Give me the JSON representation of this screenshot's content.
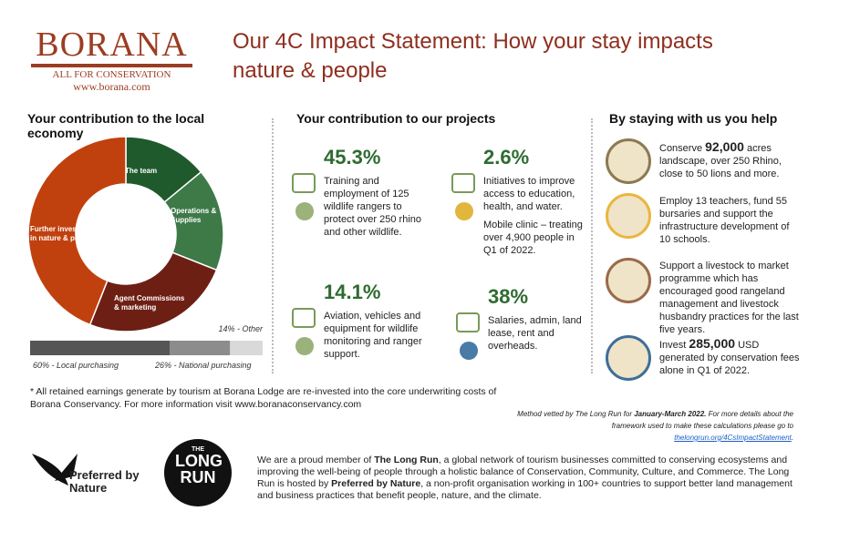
{
  "header": {
    "logo_title": "BORANA",
    "logo_tagline": "ALL FOR CONSERVATION",
    "logo_url": "www.borana.com",
    "title": "Our 4C Impact Statement: How your stay impacts nature & people"
  },
  "local": {
    "heading": "Your contribution to the local economy",
    "donut": {
      "segments": [
        {
          "label": "The team",
          "value": 14,
          "color": "#1f5a2c"
        },
        {
          "label": "Operations & Supplies",
          "value": 17,
          "color": "#3d7a48"
        },
        {
          "label": "Agent Commissions & marketing",
          "value": 25,
          "color": "#6e1f14"
        },
        {
          "label": "Further investment in nature & people",
          "value": 44,
          "color": "#c0410e"
        }
      ]
    },
    "bar": {
      "segments": [
        {
          "value": 60,
          "label": "60% - Local purchasing",
          "color": "#555555"
        },
        {
          "value": 26,
          "label": "26% - National purchasing",
          "color": "#8c8c8c"
        },
        {
          "value": 14,
          "label": "14% - Other",
          "color": "#d9d9d9"
        }
      ]
    }
  },
  "projects": {
    "heading": "Your contribution to our projects",
    "items": [
      {
        "percent": "45.3%",
        "text": "Training and employment of 125 wildlife rangers to protect over 250 rhino and other wildlife."
      },
      {
        "percent": "2.6%",
        "text": "Initiatives to improve access to education, health, and water.",
        "extra": "Mobile clinic – treating over 4,900 people in Q1 of 2022."
      },
      {
        "percent": "14.1%",
        "text": "Aviation, vehicles and equipment for wildlife monitoring and ranger support."
      },
      {
        "percent": "38%",
        "text": "Salaries, admin, land lease, rent and overheads."
      }
    ]
  },
  "help": {
    "heading": "By staying with us you help",
    "items": [
      {
        "before": "Conserve ",
        "strong": "92,000",
        "after": " acres landscape, over 250 Rhino, close to 50 lions and more."
      },
      {
        "before": "Employ 13 teachers, fund 55 bursaries and support the infrastructure development of 10 schools."
      },
      {
        "before": "Support a livestock to market programme which has encouraged good rangeland management and livestock husbandry practices for the last five years."
      },
      {
        "before": "Invest ",
        "strong": "285,000",
        "after": " USD generated by conservation fees alone in Q1 of 2022."
      }
    ]
  },
  "footnote": "* All retained earnings generate by tourism at Borana Lodge are re-invested into the core underwriting costs of Borana Conservancy. For more information visit www.boranaconservancy.com",
  "method": {
    "before": "Method vetted by The Long Run for ",
    "strong": "January-March 2022.",
    "after": " For more details about the framework used to make these calculations please go to",
    "link": "thelongrun.org/4CsImpactStatement",
    "end": "."
  },
  "logos": {
    "preferred": "Preferred by Nature",
    "longrun_top": "THE",
    "longrun": "LONG RUN"
  },
  "membership": {
    "p1": "We are a proud member of ",
    "s1": "The Long Run",
    "p2": ", a global network of tourism businesses committed to conserving ecosystems and improving the well-being of people through a holistic balance of Conservation, Community, Culture, and Commerce. The Long Run is hosted by ",
    "s2": "Preferred by Nature",
    "p3": ", a non-profit organisation working in 100+ countries to support better land management and business practices that benefit people, nature, and the climate."
  }
}
